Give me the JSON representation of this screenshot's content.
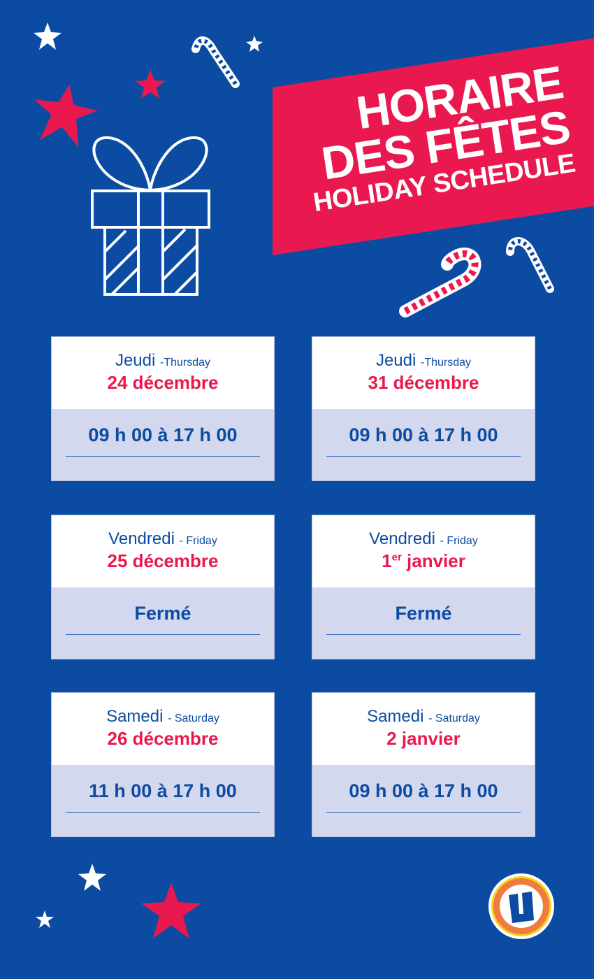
{
  "banner": {
    "line1": "HORAIRE",
    "line2": "DES FÊTES",
    "line3": "HOLIDAY SCHEDULE"
  },
  "colors": {
    "background": "#0b4ca2",
    "accent": "#e9194f",
    "card_bottom": "#d4d8ee"
  },
  "days": [
    {
      "day": "Jeudi",
      "day_en": "-Thursday",
      "date": "24 décembre",
      "hours": "09 h 00 à 17 h 00"
    },
    {
      "day": "Jeudi",
      "day_en": "-Thursday",
      "date": "31 décembre",
      "hours": "09 h 00 à 17 h 00"
    },
    {
      "day": "Vendredi",
      "day_en": "- Friday",
      "date": "25 décembre",
      "hours": "Fermé"
    },
    {
      "day": "Vendredi",
      "day_en": "- Friday",
      "date_num": "1",
      "date_sup": "er",
      "date_rest": " janvier",
      "hours": "Fermé"
    },
    {
      "day": "Samedi",
      "day_en": "- Saturday",
      "date": "26 décembre",
      "hours": "11 h 00 à 17 h 00"
    },
    {
      "day": "Samedi",
      "day_en": "- Saturday",
      "date": "2 janvier",
      "hours": "09 h 00 à 17 h 00"
    }
  ],
  "logo": {
    "letter": "U"
  }
}
